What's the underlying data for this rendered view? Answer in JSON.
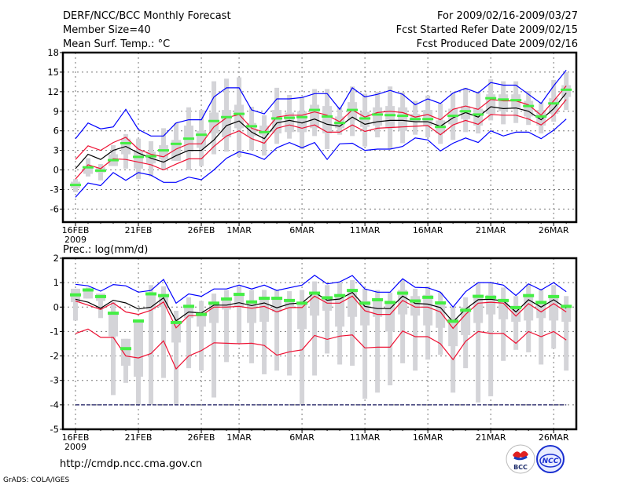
{
  "header": {
    "title": "DERF/NCC/BCC Monthly Forecast",
    "member_size": "Member Size=40",
    "variable": "Mean Surf. Temp.: °C",
    "period": "For 2009/02/16-2009/03/27",
    "started": "Fcst Started Refer Date 2009/02/15",
    "produced": "Fcst Produced Date 2009/02/16"
  },
  "footer": {
    "url": "http://cmdp.ncc.cma.gov.cn",
    "credit": "GrADS: COLA/IGES",
    "logo_bcc": "BCC",
    "logo_ncc": "NCC"
  },
  "colors": {
    "gray": "#d4d4d8",
    "green": "#44ee44",
    "black": "#000000",
    "red": "#ee1133",
    "blue": "#0000ff"
  },
  "chart_data": [
    {
      "type": "box+line",
      "title": "Mean Surf. Temp.: °C",
      "x_unit": "day index from 2009/02/16",
      "xlim": [
        -1,
        39.8
      ],
      "ylim": [
        -8,
        18
      ],
      "grid": true,
      "yticks": [
        18,
        15,
        12,
        9,
        6,
        3,
        0,
        -3,
        -6
      ],
      "xticks": [
        {
          "day": 0,
          "label": "16FEB",
          "sub": "2009"
        },
        {
          "day": 5,
          "label": "21FEB"
        },
        {
          "day": 10,
          "label": "26FEB"
        },
        {
          "day": 13,
          "label": "1MAR"
        },
        {
          "day": 18,
          "label": "6MAR"
        },
        {
          "day": 23,
          "label": "11MAR"
        },
        {
          "day": 28,
          "label": "16MAR"
        },
        {
          "day": 33,
          "label": "21MAR"
        },
        {
          "day": 38,
          "label": "26MAR"
        }
      ],
      "whisker_low": [
        -3.4,
        -1.0,
        -1.6,
        0.6,
        0.2,
        -1.4,
        -1.0,
        0.0,
        1.4,
        0.0,
        0.6,
        2.4,
        2.8,
        2.0,
        3.0,
        2.2,
        4.0,
        4.8,
        3.2,
        5.2,
        3.2,
        5.4,
        5.2,
        3.6,
        5.0,
        3.2,
        4.1,
        5.4,
        5.0,
        4.0,
        4.6,
        5.8,
        5.6,
        7.6,
        7.0,
        7.2,
        6.9,
        5.6,
        7.4,
        9.2
      ],
      "whisker_high": [
        -1.4,
        1.8,
        0.9,
        3.8,
        5.5,
        4.8,
        4.4,
        6.4,
        7.2,
        9.6,
        9.2,
        13.6,
        14.0,
        14.2,
        9.7,
        8.4,
        12.6,
        11.5,
        11.2,
        12.4,
        12.4,
        9.6,
        12.8,
        11.7,
        12.0,
        12.8,
        11.9,
        10.6,
        11.4,
        10.2,
        11.8,
        12.6,
        12.0,
        13.9,
        13.6,
        13.6,
        12.1,
        10.4,
        13.8,
        15.0
      ],
      "box_low": [
        -2.8,
        -0.6,
        -0.4,
        0.6,
        2.4,
        0.2,
        1.0,
        1.6,
        1.4,
        2.8,
        3.4,
        5.6,
        5.0,
        6.4,
        5.2,
        5.4,
        5.6,
        5.8,
        5.8,
        6.4,
        5.6,
        6.4,
        7.6,
        6.6,
        6.8,
        6.4,
        6.0,
        7.4,
        6.8,
        5.6,
        7.0,
        7.8,
        6.8,
        8.6,
        9.0,
        9.4,
        8.2,
        6.8,
        8.6,
        11.2
      ],
      "box_high": [
        -1.8,
        0.6,
        0.4,
        2.4,
        4.8,
        3.0,
        2.8,
        3.8,
        4.6,
        6.8,
        6.0,
        8.8,
        9.2,
        10.0,
        7.2,
        6.8,
        9.2,
        8.8,
        9.0,
        10.0,
        9.8,
        8.2,
        10.4,
        8.9,
        9.6,
        9.8,
        9.6,
        8.6,
        9.2,
        7.6,
        9.4,
        9.8,
        9.4,
        11.6,
        11.6,
        11.6,
        10.6,
        9.2,
        11.0,
        13.0
      ],
      "green": [
        -2.3,
        0.4,
        -0.1,
        1.5,
        4.1,
        2.0,
        2.1,
        3.0,
        4.0,
        4.8,
        5.4,
        7.5,
        8.1,
        8.6,
        6.7,
        5.8,
        7.9,
        8.0,
        8.1,
        9.2,
        8.2,
        7.2,
        9.2,
        7.9,
        8.5,
        8.4,
        8.3,
        7.8,
        7.8,
        6.6,
        8.3,
        9.0,
        8.5,
        11.0,
        10.8,
        10.7,
        9.8,
        8.2,
        10.2,
        12.3
      ],
      "black": [
        0.2,
        2.4,
        1.6,
        3.0,
        3.6,
        2.6,
        1.8,
        1.2,
        2.2,
        3.0,
        3.0,
        4.6,
        6.8,
        7.5,
        5.8,
        4.8,
        7.2,
        7.6,
        7.2,
        7.8,
        7.0,
        6.7,
        8.1,
        7.0,
        7.4,
        7.6,
        7.6,
        7.4,
        7.4,
        6.7,
        8.0,
        8.8,
        8.1,
        9.7,
        9.4,
        9.5,
        9.0,
        7.7,
        9.4,
        11.8
      ],
      "red_upper": [
        1.6,
        3.7,
        3.0,
        4.2,
        5.0,
        3.2,
        2.4,
        2.0,
        3.2,
        4.0,
        4.0,
        6.6,
        8.0,
        8.5,
        6.4,
        5.8,
        8.1,
        8.4,
        8.4,
        8.9,
        8.4,
        7.4,
        9.2,
        8.1,
        8.8,
        9.0,
        8.8,
        8.1,
        8.5,
        7.7,
        9.3,
        9.8,
        9.3,
        10.8,
        10.6,
        10.6,
        10.0,
        8.4,
        10.6,
        12.9
      ],
      "red_lower": [
        -1.4,
        0.8,
        0.2,
        1.7,
        1.6,
        1.2,
        0.8,
        0.0,
        0.9,
        1.7,
        1.7,
        3.6,
        5.2,
        6.0,
        4.8,
        4.1,
        6.4,
        6.9,
        6.4,
        6.9,
        5.8,
        5.8,
        6.9,
        5.9,
        6.4,
        6.5,
        6.6,
        6.7,
        6.8,
        5.4,
        6.9,
        7.6,
        7.0,
        8.5,
        8.4,
        8.4,
        7.8,
        6.9,
        8.4,
        10.8
      ],
      "blue_upper": [
        4.8,
        7.2,
        6.3,
        6.6,
        9.3,
        6.2,
        5.2,
        5.2,
        7.2,
        7.7,
        7.7,
        11.2,
        12.6,
        12.6,
        9.2,
        8.6,
        10.9,
        10.9,
        11.1,
        11.7,
        11.7,
        9.3,
        12.6,
        11.2,
        11.6,
        12.2,
        11.6,
        10.0,
        10.9,
        10.2,
        11.8,
        12.5,
        11.8,
        13.4,
        13.0,
        13.0,
        11.6,
        10.2,
        12.9,
        15.3
      ],
      "blue_lower": [
        -4.2,
        -2.0,
        -2.4,
        -0.4,
        -1.6,
        -0.4,
        -0.8,
        -1.9,
        -1.9,
        -1.1,
        -1.5,
        0.0,
        1.8,
        2.8,
        2.4,
        1.6,
        3.4,
        4.2,
        3.4,
        4.2,
        1.6,
        4.0,
        4.1,
        3.0,
        3.2,
        3.2,
        3.6,
        4.9,
        4.6,
        2.9,
        4.1,
        4.9,
        4.2,
        6.0,
        5.2,
        5.8,
        5.8,
        4.8,
        6.1,
        7.8
      ]
    },
    {
      "type": "box+line",
      "title": "Prec.: log(mm/d)",
      "x_unit": "day index from 2009/02/16",
      "xlim": [
        -1,
        39.8
      ],
      "ylim": [
        -5,
        2
      ],
      "grid": true,
      "yticks": [
        2,
        1,
        0,
        -1,
        -2,
        -3,
        -4,
        -5
      ],
      "xticks": [
        {
          "day": 0,
          "label": "16FEB",
          "sub": "2009"
        },
        {
          "day": 5,
          "label": "21FEB"
        },
        {
          "day": 10,
          "label": "26FEB"
        },
        {
          "day": 13,
          "label": "1MAR"
        },
        {
          "day": 18,
          "label": "6MAR"
        },
        {
          "day": 23,
          "label": "11MAR"
        },
        {
          "day": 28,
          "label": "16MAR"
        },
        {
          "day": 33,
          "label": "21MAR"
        },
        {
          "day": 38,
          "label": "26MAR"
        }
      ],
      "whisker_low": [
        -0.55,
        0.35,
        -0.45,
        -3.6,
        -3.1,
        -4.0,
        -4.0,
        -2.9,
        -4.0,
        -2.5,
        -2.6,
        -3.7,
        -2.25,
        -1.5,
        -2.3,
        -2.75,
        -2.6,
        -2.8,
        -4.0,
        -2.8,
        -1.9,
        -2.35,
        -2.4,
        -3.75,
        -3.5,
        -3.2,
        -2.3,
        -2.6,
        -2.15,
        -1.95,
        -3.5,
        -2.5,
        -3.9,
        -3.65,
        -2.2,
        -1.75,
        -1.85,
        -2.35,
        -1.7,
        -2.6
      ],
      "whisker_high": [
        0.75,
        0.8,
        0.55,
        0.2,
        -1.3,
        -0.6,
        0.9,
        0.85,
        -0.15,
        0.4,
        0.25,
        0.55,
        0.7,
        0.85,
        0.7,
        0.7,
        0.7,
        0.65,
        0.7,
        1.05,
        0.9,
        1.0,
        1.1,
        0.75,
        0.7,
        0.6,
        1.1,
        0.75,
        0.85,
        0.6,
        0.0,
        0.4,
        1.0,
        1.0,
        0.8,
        0.45,
        0.95,
        0.75,
        0.9,
        0.45
      ],
      "box_low": [
        0.2,
        0.35,
        0.25,
        -1.2,
        -2.4,
        -2.85,
        -0.1,
        0.0,
        -1.45,
        -0.45,
        -0.8,
        -0.65,
        -0.1,
        0.0,
        -0.65,
        -0.6,
        -0.2,
        -0.05,
        -0.9,
        -0.35,
        -0.15,
        -0.8,
        -0.4,
        -0.75,
        -0.4,
        -1.0,
        -0.3,
        -0.35,
        -0.75,
        -0.85,
        -1.6,
        -1.15,
        -0.65,
        -0.3,
        -0.5,
        -0.6,
        -0.55,
        -0.45,
        -0.55,
        -0.6
      ],
      "box_high": [
        0.75,
        0.7,
        0.55,
        -0.25,
        -1.3,
        -0.6,
        0.55,
        0.45,
        -0.6,
        0.1,
        -0.2,
        0.15,
        0.35,
        0.5,
        0.2,
        0.4,
        0.4,
        0.3,
        0.2,
        0.6,
        0.4,
        0.45,
        0.7,
        0.25,
        0.35,
        0.25,
        0.7,
        0.45,
        0.5,
        0.2,
        -0.45,
        0.0,
        0.5,
        0.5,
        0.3,
        0.05,
        0.5,
        0.2,
        0.5,
        0.05
      ],
      "green": [
        0.5,
        0.7,
        0.43,
        -0.25,
        -1.7,
        -0.57,
        0.54,
        0.47,
        -0.63,
        0.03,
        -0.3,
        0.16,
        0.33,
        0.52,
        0.21,
        0.36,
        0.36,
        0.27,
        0.16,
        0.57,
        0.38,
        0.47,
        0.68,
        0.16,
        0.3,
        0.19,
        0.57,
        0.25,
        0.4,
        0.17,
        -0.58,
        -0.13,
        0.44,
        0.4,
        0.27,
        -0.02,
        0.47,
        0.19,
        0.43,
        0.03
      ],
      "black": [
        0.32,
        0.2,
        -0.05,
        0.28,
        0.17,
        -0.08,
        0.0,
        0.38,
        -0.56,
        -0.2,
        -0.24,
        0.08,
        0.08,
        0.18,
        0.06,
        0.17,
        -0.03,
        0.13,
        0.17,
        0.6,
        0.28,
        0.33,
        0.6,
        0.03,
        -0.06,
        -0.06,
        0.45,
        0.15,
        0.12,
        -0.02,
        -0.6,
        -0.08,
        0.3,
        0.32,
        0.25,
        -0.2,
        0.3,
        0.0,
        0.3,
        -0.05
      ],
      "red_upper": [
        0.25,
        0.08,
        -0.1,
        0.17,
        -0.2,
        -0.3,
        -0.13,
        0.21,
        -0.85,
        -0.35,
        -0.35,
        0.0,
        0.0,
        0.03,
        -0.05,
        0.03,
        -0.2,
        -0.02,
        -0.02,
        0.45,
        0.16,
        0.16,
        0.45,
        -0.15,
        -0.3,
        -0.3,
        0.27,
        0.0,
        0.0,
        -0.2,
        -0.87,
        -0.3,
        0.16,
        0.2,
        0.16,
        -0.37,
        0.14,
        -0.2,
        0.14,
        -0.2
      ],
      "red_lower": [
        -1.08,
        -0.9,
        -1.24,
        -1.24,
        -2.0,
        -2.08,
        -1.9,
        -1.38,
        -2.53,
        -2.0,
        -1.78,
        -1.46,
        -1.48,
        -1.5,
        -1.48,
        -1.57,
        -1.97,
        -1.83,
        -1.75,
        -1.16,
        -1.32,
        -1.19,
        -1.14,
        -1.67,
        -1.64,
        -1.64,
        -0.98,
        -1.21,
        -1.21,
        -1.5,
        -2.15,
        -1.4,
        -1.0,
        -1.08,
        -1.08,
        -1.48,
        -1.0,
        -1.21,
        -1.0,
        -1.35
      ],
      "blue_upper": [
        0.93,
        0.87,
        0.65,
        0.92,
        0.87,
        0.61,
        0.68,
        1.13,
        0.16,
        0.54,
        0.44,
        0.74,
        0.74,
        0.9,
        0.74,
        0.9,
        0.68,
        0.79,
        0.9,
        1.3,
        0.95,
        1.03,
        1.29,
        0.74,
        0.61,
        0.61,
        1.16,
        0.81,
        0.79,
        0.61,
        0.0,
        0.63,
        1.0,
        1.0,
        0.9,
        0.47,
        0.95,
        0.7,
        1.0,
        0.63
      ],
      "blue_lower": [
        -4,
        -4,
        -4,
        -4,
        -4,
        -4,
        -4,
        -4,
        -4,
        -4,
        -4,
        -4,
        -4,
        -4,
        -4,
        -4,
        -4,
        -4,
        -4,
        -4,
        -4,
        -4,
        -4,
        -4,
        -4,
        -4,
        -4,
        -4,
        -4,
        -4,
        -4,
        -4,
        -4,
        -4,
        -4,
        -4,
        -4,
        -4,
        -4,
        -4
      ]
    }
  ]
}
